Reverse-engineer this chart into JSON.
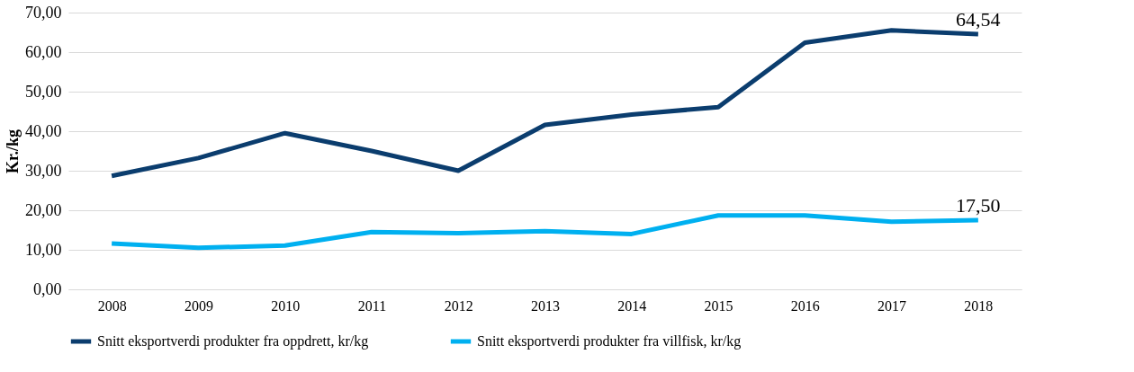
{
  "chart_data": {
    "type": "line",
    "ylabel": "Kr./kg",
    "categories": [
      "2008",
      "2009",
      "2010",
      "2011",
      "2012",
      "2013",
      "2014",
      "2015",
      "2016",
      "2017",
      "2018"
    ],
    "series": [
      {
        "name": "Snitt eksportverdi produkter fra oppdrett, kr/kg",
        "color": "#0b3d6e",
        "values": [
          28.7,
          33.2,
          39.5,
          35.0,
          30.0,
          41.6,
          44.2,
          46.1,
          62.4,
          65.5,
          64.54
        ],
        "value_labels": [
          null,
          null,
          null,
          null,
          null,
          null,
          null,
          null,
          null,
          null,
          "64,54"
        ]
      },
      {
        "name": "Snitt eksportverdi produkter fra villfisk, kr/kg",
        "color": "#00b0f0",
        "values": [
          11.6,
          10.5,
          11.1,
          14.5,
          14.2,
          14.7,
          14.0,
          18.7,
          18.7,
          17.1,
          17.5
        ],
        "value_labels": [
          null,
          null,
          null,
          null,
          null,
          null,
          null,
          null,
          null,
          null,
          "17,50"
        ]
      }
    ],
    "ylim": [
      0,
      70
    ],
    "yticks": [
      {
        "value": 0,
        "label": "0,00"
      },
      {
        "value": 10,
        "label": "10,00"
      },
      {
        "value": 20,
        "label": "20,00"
      },
      {
        "value": 30,
        "label": "30,00"
      },
      {
        "value": 40,
        "label": "40,00"
      },
      {
        "value": 50,
        "label": "50,00"
      },
      {
        "value": 60,
        "label": "60,00"
      },
      {
        "value": 70,
        "label": "70,00"
      }
    ],
    "grid": "y",
    "legend": "bottom",
    "marker": "none",
    "line_style": "solid"
  }
}
